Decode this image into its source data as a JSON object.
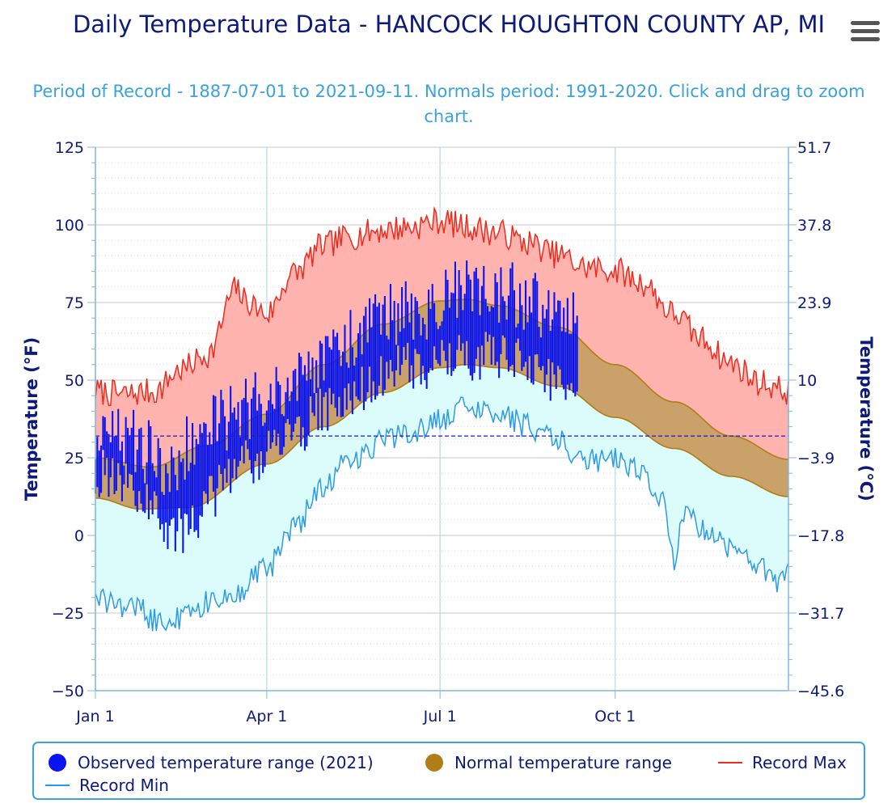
{
  "title": "Daily Temperature Data - HANCOCK HOUGHTON COUNTY AP, MI",
  "subtitle": "Period of Record - 1887-07-01 to 2021-09-11. Normals period: 1991-2020. Click and drag to zoom chart.",
  "menu_icon": "hamburger-menu-icon",
  "colors": {
    "observed": "#0a14f0",
    "normal_fill": "#c9a169",
    "normal_line": "#b07d16",
    "record_max_line": "#ee2a1d",
    "record_max_fill": "#ffb3ae",
    "record_min_line": "#2a9be6",
    "record_min_fill": "#dcfbfb",
    "freezing_line": "#1b1bd0",
    "axis_text": "#0d1a7a"
  },
  "chart_data": {
    "type": "area",
    "x_axis": {
      "label": "",
      "ticks": [
        "Jan 1",
        "Apr 1",
        "Jul 1",
        "Oct 1"
      ],
      "day_range": [
        1,
        365
      ]
    },
    "y_axis_left": {
      "label": "Temperature (°F)",
      "range": [
        -50,
        125
      ],
      "ticks": [
        -50,
        -25,
        0,
        25,
        50,
        75,
        100,
        125
      ]
    },
    "y_axis_right": {
      "label": "Temperature (°C)",
      "ticks": [
        "-45.6",
        "-31.7",
        "-17.8",
        "-3.9",
        "10",
        "23.9",
        "37.8",
        "51.7"
      ]
    },
    "freezing_line_f": 32,
    "series": [
      {
        "name": "Record Max",
        "knots_day": [
          1,
          15,
          32,
          46,
          60,
          75,
          80,
          91,
          105,
          121,
          135,
          152,
          166,
          182,
          196,
          213,
          227,
          244,
          258,
          274,
          288,
          305,
          319,
          335,
          350,
          365
        ],
        "knots_value": [
          45,
          44,
          45,
          52,
          57,
          78,
          74,
          70,
          83,
          92,
          95,
          97,
          98,
          100,
          98,
          96,
          93,
          89,
          85,
          84,
          80,
          70,
          62,
          54,
          48,
          45
        ]
      },
      {
        "name": "Normal temperature range",
        "high_knots_day": [
          1,
          30,
          60,
          91,
          121,
          152,
          182,
          196,
          213,
          244,
          274,
          305,
          335,
          365
        ],
        "high_knots_value": [
          25,
          22,
          29,
          39,
          55,
          68,
          75.5,
          76,
          74,
          67,
          55,
          43,
          32,
          24.5
        ],
        "low_knots_day": [
          1,
          25,
          50,
          91,
          121,
          152,
          182,
          196,
          213,
          244,
          274,
          305,
          335,
          365
        ],
        "low_knots_value": [
          12,
          8.5,
          9,
          23,
          35,
          46,
          54,
          55,
          54,
          48,
          38,
          28,
          19,
          12.5
        ]
      },
      {
        "name": "Record Min",
        "knots_day": [
          1,
          20,
          35,
          45,
          60,
          75,
          91,
          105,
          121,
          135,
          152,
          166,
          182,
          196,
          213,
          227,
          244,
          258,
          274,
          288,
          300,
          305,
          310,
          320,
          335,
          350,
          360,
          365
        ],
        "knots_value": [
          -20,
          -22,
          -27,
          -26,
          -21,
          -17,
          -10,
          3,
          17,
          25,
          31,
          34,
          38,
          42,
          41,
          36,
          31,
          25,
          25,
          21,
          11,
          -7,
          7,
          3,
          -3,
          -9,
          -14,
          -11
        ]
      },
      {
        "name": "Observed temperature range (2021)",
        "through_day": 254,
        "high_knots_day": [
          1,
          15,
          30,
          40,
          50,
          60,
          75,
          91,
          105,
          121,
          135,
          152,
          166,
          182,
          196,
          213,
          227,
          240,
          254
        ],
        "high_knots_value": [
          30,
          31,
          27,
          20,
          28,
          35,
          38,
          45,
          48,
          56,
          62,
          70,
          72,
          74,
          80,
          78,
          76,
          70,
          68
        ],
        "low_knots_day": [
          1,
          15,
          30,
          40,
          50,
          60,
          75,
          91,
          105,
          121,
          135,
          152,
          166,
          182,
          196,
          213,
          227,
          240,
          254
        ],
        "low_knots_value": [
          20,
          18,
          10,
          0,
          2,
          12,
          22,
          26,
          33,
          40,
          45,
          52,
          54,
          55,
          57,
          58,
          57,
          50,
          48
        ]
      }
    ],
    "legend": [
      "Observed temperature range (2021)",
      "Normal temperature range",
      "Record Max",
      "Record Min"
    ],
    "legend_position": "bottom"
  }
}
